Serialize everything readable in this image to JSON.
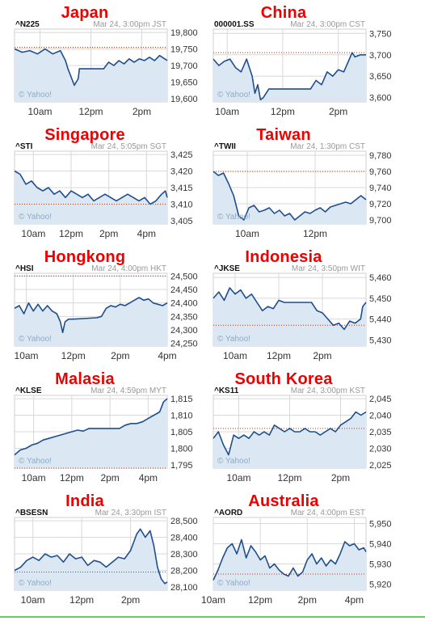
{
  "watermark": "© Yahoo!",
  "colors": {
    "title": "#ee0000",
    "line": "#1f4e8c",
    "fill": "#dbe8f3",
    "prev_close": "#cc3300",
    "grid": "#d8d8d8",
    "axis_text": "#333333",
    "header_info": "#999999",
    "watermark": "#8fa9c6"
  },
  "chart_data": [
    {
      "type": "area",
      "country": "Japan",
      "symbol": "^N225",
      "timestamp": "Mar 24, 3:00pm JST",
      "y_ticks": [
        "19,800",
        "19,750",
        "19,700",
        "19,650",
        "19,600"
      ],
      "y_tick_values": [
        19800,
        19750,
        19700,
        19650,
        19600
      ],
      "ylim": [
        19590,
        19810
      ],
      "x_ticks": [
        "10am",
        "12pm",
        "2pm"
      ],
      "x_tick_values": [
        10,
        12,
        14
      ],
      "xlim": [
        9,
        15
      ],
      "previous_close": 19755,
      "x": [
        9,
        9.3,
        9.6,
        9.9,
        10.2,
        10.5,
        10.8,
        11.0,
        11.1,
        11.2,
        11.35,
        11.5,
        11.55,
        12.5,
        12.7,
        12.9,
        13.1,
        13.3,
        13.5,
        13.7,
        13.9,
        14.1,
        14.3,
        14.5,
        14.7,
        14.9,
        15.0
      ],
      "values": [
        19750,
        19740,
        19745,
        19735,
        19750,
        19735,
        19745,
        19715,
        19690,
        19670,
        19640,
        19660,
        19690,
        19690,
        19710,
        19700,
        19715,
        19705,
        19720,
        19710,
        19720,
        19715,
        19725,
        19715,
        19730,
        19720,
        19715
      ]
    },
    {
      "type": "area",
      "country": "China",
      "symbol": "000001.SS",
      "timestamp": "Mar 24, 3:00pm CST",
      "y_ticks": [
        "3,750",
        "3,700",
        "3,650",
        "3,600"
      ],
      "y_tick_values": [
        3750,
        3700,
        3650,
        3600
      ],
      "ylim": [
        3590,
        3760
      ],
      "x_ticks": [
        "10am",
        "12pm",
        "2pm"
      ],
      "x_tick_values": [
        10,
        12,
        14
      ],
      "xlim": [
        9.5,
        15
      ],
      "previous_close": 3705,
      "x": [
        9.5,
        9.7,
        9.9,
        10.1,
        10.3,
        10.5,
        10.7,
        10.9,
        11.0,
        11.1,
        11.2,
        11.3,
        11.5,
        13.0,
        13.2,
        13.4,
        13.6,
        13.8,
        14.0,
        14.2,
        14.4,
        14.5,
        14.6,
        14.8,
        15.0
      ],
      "values": [
        3690,
        3675,
        3685,
        3690,
        3670,
        3660,
        3690,
        3650,
        3610,
        3630,
        3595,
        3600,
        3620,
        3620,
        3640,
        3630,
        3660,
        3650,
        3665,
        3660,
        3690,
        3705,
        3695,
        3700,
        3700
      ]
    },
    {
      "type": "area",
      "country": "Singapore",
      "symbol": "^STI",
      "timestamp": "Mar 24, 5:05pm SGT",
      "y_ticks": [
        "3,425",
        "3,420",
        "3,415",
        "3,410",
        "3,405"
      ],
      "y_tick_values": [
        3425,
        3420,
        3415,
        3410,
        3405
      ],
      "ylim": [
        3404,
        3426
      ],
      "x_ticks": [
        "10am",
        "12pm",
        "2pm",
        "4pm"
      ],
      "x_tick_values": [
        10,
        12,
        14,
        16
      ],
      "xlim": [
        9,
        17.1
      ],
      "previous_close": 3410,
      "x": [
        9,
        9.3,
        9.6,
        9.9,
        10.2,
        10.5,
        10.8,
        11.1,
        11.4,
        11.7,
        12.0,
        12.3,
        12.6,
        12.9,
        13.2,
        13.5,
        13.8,
        14.1,
        14.4,
        14.7,
        15.0,
        15.3,
        15.6,
        15.9,
        16.2,
        16.5,
        16.8,
        17.0,
        17.1
      ],
      "values": [
        3420,
        3419,
        3416,
        3417,
        3415,
        3414,
        3415,
        3413,
        3414,
        3412,
        3414,
        3413,
        3412,
        3413,
        3411,
        3412,
        3413,
        3412,
        3411,
        3412,
        3413,
        3412,
        3411,
        3412,
        3410,
        3411,
        3413,
        3414,
        3412
      ]
    },
    {
      "type": "area",
      "country": "Taiwan",
      "symbol": "^TWII",
      "timestamp": "Mar 24, 1:30pm CST",
      "y_ticks": [
        "9,780",
        "9,760",
        "9,740",
        "9,720",
        "9,700"
      ],
      "y_tick_values": [
        9780,
        9760,
        9740,
        9720,
        9700
      ],
      "ylim": [
        9695,
        9785
      ],
      "x_ticks": [
        "10am",
        "12pm"
      ],
      "x_tick_values": [
        10,
        12
      ],
      "xlim": [
        9,
        13.5
      ],
      "previous_close": 9760,
      "x": [
        9,
        9.15,
        9.3,
        9.45,
        9.6,
        9.75,
        9.9,
        10.05,
        10.2,
        10.35,
        10.5,
        10.65,
        10.8,
        10.95,
        11.1,
        11.25,
        11.4,
        11.55,
        11.7,
        11.85,
        12.0,
        12.15,
        12.3,
        12.45,
        12.6,
        12.75,
        12.9,
        13.05,
        13.2,
        13.35,
        13.5
      ],
      "values": [
        9760,
        9755,
        9758,
        9745,
        9730,
        9705,
        9700,
        9715,
        9718,
        9710,
        9712,
        9715,
        9708,
        9712,
        9705,
        9708,
        9700,
        9705,
        9710,
        9708,
        9712,
        9715,
        9710,
        9716,
        9718,
        9720,
        9722,
        9720,
        9725,
        9730,
        9725
      ]
    },
    {
      "type": "area",
      "country": "Hongkong",
      "symbol": "^HSI",
      "timestamp": "Mar 24, 4:00pm HKT",
      "y_ticks": [
        "24,500",
        "24,450",
        "24,400",
        "24,350",
        "24,300",
        "24,250"
      ],
      "y_tick_values": [
        24500,
        24450,
        24400,
        24350,
        24300,
        24250
      ],
      "ylim": [
        24240,
        24510
      ],
      "x_ticks": [
        "10am",
        "12pm",
        "2pm",
        "4pm"
      ],
      "x_tick_values": [
        10,
        12,
        14,
        16
      ],
      "xlim": [
        9.5,
        16
      ],
      "previous_close": 24500,
      "x": [
        9.5,
        9.7,
        9.9,
        10.1,
        10.3,
        10.5,
        10.7,
        10.9,
        11.1,
        11.3,
        11.45,
        11.55,
        11.65,
        11.8,
        12.0,
        13.0,
        13.2,
        13.4,
        13.6,
        13.8,
        14.0,
        14.2,
        14.4,
        14.6,
        14.8,
        15.0,
        15.2,
        15.4,
        15.6,
        15.8,
        16.0
      ],
      "values": [
        24380,
        24390,
        24360,
        24400,
        24370,
        24395,
        24370,
        24390,
        24370,
        24360,
        24330,
        24290,
        24330,
        24340,
        24340,
        24345,
        24350,
        24380,
        24390,
        24385,
        24395,
        24390,
        24400,
        24410,
        24420,
        24410,
        24415,
        24400,
        24395,
        24390,
        24400
      ]
    },
    {
      "type": "area",
      "country": "Indonesia",
      "symbol": "^JKSE",
      "timestamp": "Mar 24, 3:50pm WIT",
      "y_ticks": [
        "5,460",
        "5,450",
        "5,440",
        "5,430"
      ],
      "y_tick_values": [
        5460,
        5450,
        5440,
        5430
      ],
      "ylim": [
        5427,
        5462
      ],
      "x_ticks": [
        "10am",
        "12pm",
        "2pm"
      ],
      "x_tick_values": [
        10,
        12,
        14
      ],
      "xlim": [
        9,
        16
      ],
      "previous_close": 5437,
      "x": [
        9,
        9.25,
        9.5,
        9.75,
        10.0,
        10.25,
        10.5,
        10.75,
        11.0,
        11.25,
        11.5,
        11.75,
        12.0,
        12.25,
        13.5,
        13.75,
        14.0,
        14.25,
        14.5,
        14.75,
        15.0,
        15.25,
        15.5,
        15.75,
        15.85,
        16.0
      ],
      "values": [
        5450,
        5453,
        5449,
        5455,
        5452,
        5454,
        5450,
        5452,
        5448,
        5444,
        5446,
        5445,
        5449,
        5448,
        5448,
        5444,
        5443,
        5440,
        5437,
        5438,
        5435,
        5439,
        5438,
        5440,
        5446,
        5448
      ]
    },
    {
      "type": "area",
      "country": "Malasia",
      "symbol": "^KLSE",
      "timestamp": "Mar 24, 4:59pm MYT",
      "y_ticks": [
        "1,815",
        "1,810",
        "1,805",
        "1,800",
        "1,795"
      ],
      "y_tick_values": [
        1815,
        1810,
        1805,
        1800,
        1795
      ],
      "ylim": [
        1794,
        1816
      ],
      "x_ticks": [
        "10am",
        "12pm",
        "2pm",
        "4pm"
      ],
      "x_tick_values": [
        10,
        12,
        14,
        16
      ],
      "xlim": [
        9,
        17
      ],
      "previous_close": 1794,
      "x": [
        9,
        9.3,
        9.6,
        9.9,
        10.2,
        10.5,
        10.8,
        11.1,
        11.4,
        11.7,
        12.0,
        12.3,
        12.6,
        12.9,
        14.5,
        14.8,
        15.1,
        15.4,
        15.7,
        16.0,
        16.3,
        16.6,
        16.8,
        17.0
      ],
      "values": [
        1798,
        1799.5,
        1800,
        1801,
        1801.5,
        1802.5,
        1803,
        1803.5,
        1804,
        1804.5,
        1805,
        1805.5,
        1805.2,
        1806,
        1806,
        1807,
        1807.5,
        1807.5,
        1808,
        1809,
        1810,
        1811,
        1814,
        1815
      ]
    },
    {
      "type": "area",
      "country": "South Korea",
      "symbol": "^KS11",
      "timestamp": "Mar 24, 3:00pm KST",
      "y_ticks": [
        "2,045",
        "2,040",
        "2,035",
        "2,030",
        "2,025"
      ],
      "y_tick_values": [
        2045,
        2040,
        2035,
        2030,
        2025
      ],
      "ylim": [
        2024,
        2046
      ],
      "x_ticks": [
        "10am",
        "12pm",
        "2pm"
      ],
      "x_tick_values": [
        10,
        12,
        14
      ],
      "xlim": [
        9,
        15
      ],
      "previous_close": 2036,
      "x": [
        9,
        9.2,
        9.4,
        9.6,
        9.8,
        10.0,
        10.2,
        10.4,
        10.6,
        10.8,
        11.0,
        11.2,
        11.4,
        11.6,
        11.8,
        12.0,
        12.2,
        12.4,
        12.6,
        12.8,
        13.0,
        13.2,
        13.4,
        13.6,
        13.8,
        14.0,
        14.2,
        14.4,
        14.6,
        14.8,
        15.0
      ],
      "values": [
        2033,
        2035,
        2031,
        2028,
        2034,
        2033,
        2034,
        2033,
        2035,
        2034,
        2035,
        2034,
        2037,
        2036,
        2035,
        2036,
        2035,
        2035,
        2036,
        2035,
        2035,
        2034,
        2035,
        2036,
        2035,
        2037,
        2038,
        2039,
        2041,
        2040,
        2041
      ]
    },
    {
      "type": "area",
      "country": "India",
      "symbol": "^BSESN",
      "timestamp": "Mar 24, 3:30pm IST",
      "y_ticks": [
        "28,500",
        "28,400",
        "28,300",
        "28,200",
        "28,100"
      ],
      "y_tick_values": [
        28500,
        28400,
        28300,
        28200,
        28100
      ],
      "ylim": [
        28080,
        28520
      ],
      "x_ticks": [
        "10am",
        "12pm",
        "2pm"
      ],
      "x_tick_values": [
        10,
        12,
        14
      ],
      "xlim": [
        9.25,
        15.5
      ],
      "previous_close": 28190,
      "x": [
        9.25,
        9.5,
        9.75,
        10.0,
        10.25,
        10.5,
        10.75,
        11.0,
        11.25,
        11.5,
        11.75,
        12.0,
        12.25,
        12.5,
        12.75,
        13.0,
        13.25,
        13.5,
        13.75,
        14.0,
        14.25,
        14.4,
        14.6,
        14.8,
        14.95,
        15.1,
        15.25,
        15.4,
        15.5
      ],
      "values": [
        28200,
        28220,
        28260,
        28280,
        28260,
        28300,
        28280,
        28290,
        28250,
        28300,
        28270,
        28280,
        28230,
        28260,
        28250,
        28220,
        28250,
        28280,
        28270,
        28320,
        28420,
        28450,
        28400,
        28440,
        28350,
        28220,
        28150,
        28120,
        28130
      ]
    },
    {
      "type": "area",
      "country": "Australia",
      "symbol": "^AORD",
      "timestamp": "Mar 24, 4:00pm EST",
      "y_ticks": [
        "5,950",
        "5,940",
        "5,930",
        "5,920"
      ],
      "y_tick_values": [
        5950,
        5940,
        5930,
        5920
      ],
      "ylim": [
        5917,
        5953
      ],
      "x_ticks": [
        "10am",
        "12pm",
        "2pm",
        "4pm"
      ],
      "x_tick_values": [
        10,
        12,
        14,
        16
      ],
      "xlim": [
        10,
        16.5
      ],
      "previous_close": 5925,
      "x": [
        10,
        10.2,
        10.4,
        10.6,
        10.8,
        11.0,
        11.2,
        11.4,
        11.6,
        11.8,
        12.0,
        12.2,
        12.4,
        12.6,
        12.8,
        13.0,
        13.2,
        13.4,
        13.6,
        13.8,
        14.0,
        14.2,
        14.4,
        14.6,
        14.8,
        15.0,
        15.2,
        15.4,
        15.6,
        15.8,
        16.0,
        16.2,
        16.4,
        16.5
      ],
      "values": [
        5922,
        5927,
        5933,
        5938,
        5940,
        5935,
        5942,
        5933,
        5939,
        5936,
        5932,
        5934,
        5928,
        5930,
        5927,
        5925,
        5924,
        5928,
        5924,
        5926,
        5932,
        5935,
        5930,
        5933,
        5929,
        5932,
        5930,
        5935,
        5941,
        5939,
        5940,
        5937,
        5938,
        5936
      ]
    }
  ]
}
